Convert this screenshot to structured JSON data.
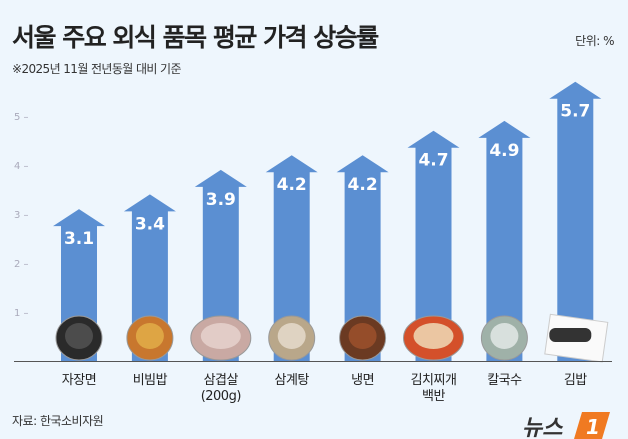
{
  "header": {
    "title": "서울 주요 외식 품목 평균 가격 상승률",
    "unit": "단위: %",
    "subtitle": "※2025년 11월 전년동월 대비 기준"
  },
  "footer": {
    "source": "자료: 한국소비자원",
    "logo_text": "뉴스1"
  },
  "colors": {
    "bar": "#5b8fd2",
    "background": "#eef6fd",
    "logo": "#f07a22"
  },
  "chart_data": {
    "type": "bar",
    "categories": [
      "자장면",
      "비빔밥",
      "삼겹살\n(200g)",
      "삼계탕",
      "냉면",
      "김치찌개\n백반",
      "칼국수",
      "김밥"
    ],
    "values": [
      3.1,
      3.4,
      3.9,
      4.2,
      4.2,
      4.7,
      4.9,
      5.7
    ],
    "value_labels": [
      "3.1",
      "3.4",
      "3.9",
      "4.2",
      "4.2",
      "4.7",
      "4.9",
      "5.7"
    ],
    "yticks": [
      1,
      2,
      3,
      4,
      5
    ],
    "ylim": [
      0,
      5.8
    ],
    "bar_style": "arrow",
    "grid": false,
    "images": [
      "jajangmyeon",
      "bibimbap",
      "samgyeopsal",
      "samgyetang",
      "naengmyeon",
      "kimchi-jjigae",
      "kalguksu",
      "gimbap"
    ]
  }
}
